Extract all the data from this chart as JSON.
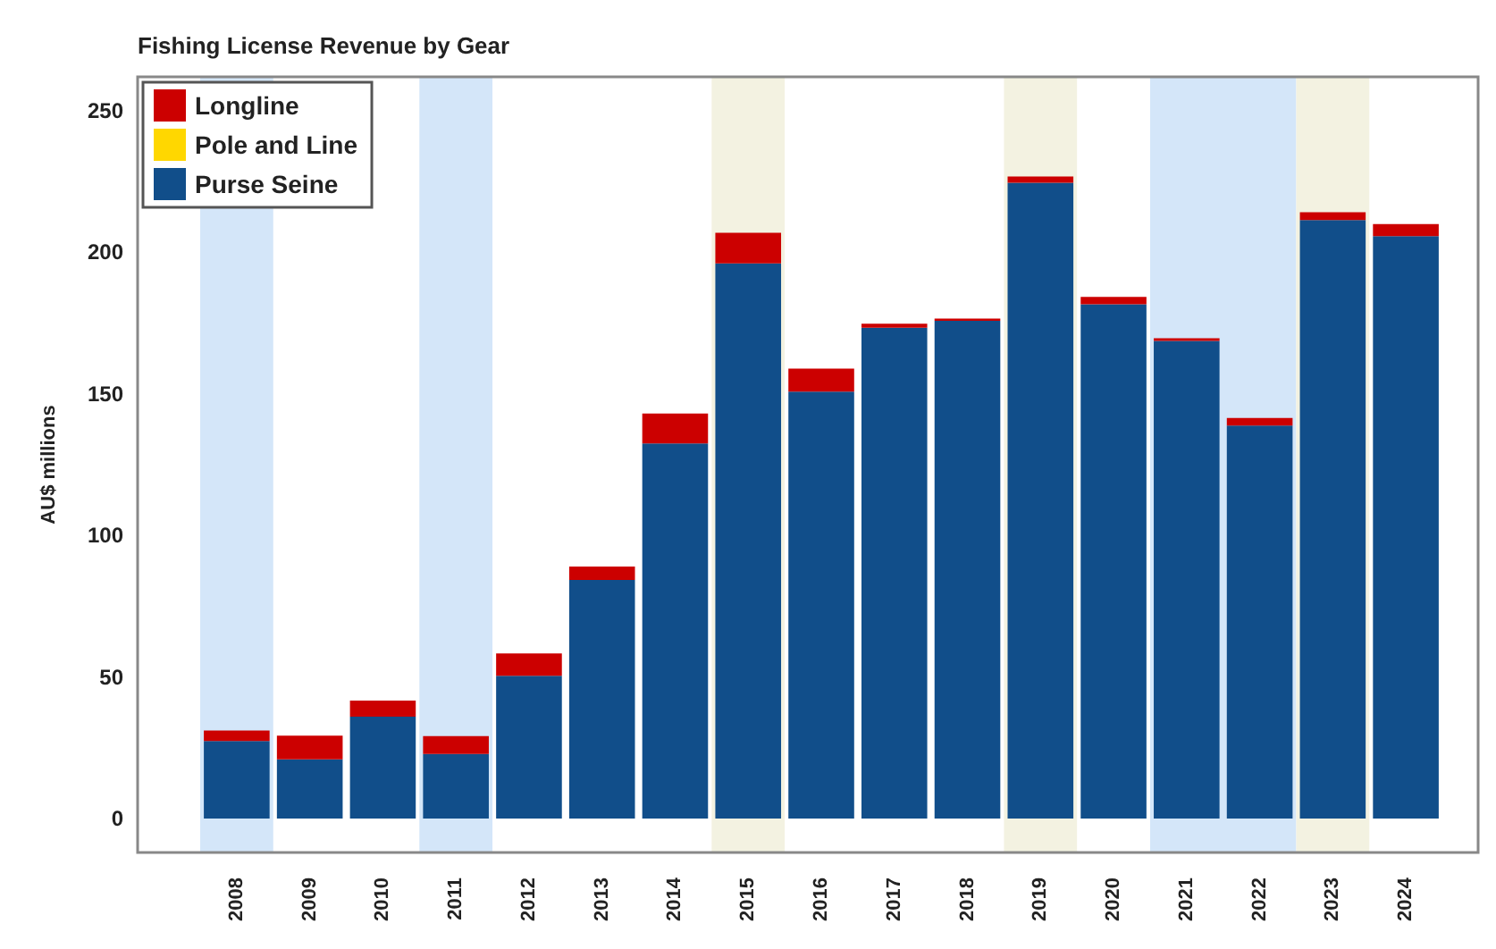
{
  "chart_data": {
    "type": "bar",
    "title": "Fishing License Revenue by Gear",
    "ylabel": "AU$ millions",
    "categories": [
      "2008",
      "2009",
      "2010",
      "2011",
      "2012",
      "2013",
      "2014",
      "2015",
      "2016",
      "2017",
      "2018",
      "2019",
      "2020",
      "2021",
      "2022",
      "2023",
      "2024"
    ],
    "stacked": true,
    "series": [
      {
        "name": "Purse Seine",
        "color": "#114e8a",
        "values": [
          27.4,
          20.9,
          36,
          22.8,
          50.4,
          84.3,
          132.5,
          196.1,
          150.8,
          173.4,
          175.8,
          224.6,
          181.7,
          168.7,
          138.8,
          211.4,
          205.7
        ]
      },
      {
        "name": "Pole and Line",
        "color": "#ffd700",
        "values": [
          0,
          0,
          0,
          0,
          0,
          0,
          0,
          0,
          0,
          0,
          0,
          0,
          0,
          0,
          0,
          0,
          0
        ]
      },
      {
        "name": "Longline",
        "color": "#cc0000",
        "values": [
          3.7,
          8.4,
          5.7,
          6.3,
          7.9,
          4.7,
          10.6,
          10.8,
          8.1,
          1.4,
          0.8,
          2.2,
          2.6,
          1.0,
          2.7,
          2.8,
          4.3
        ]
      }
    ],
    "ylim": [
      -12,
      262
    ],
    "yticks": [
      0,
      50,
      100,
      150,
      200,
      250
    ],
    "bands": [
      {
        "axis": "x",
        "from": "2008",
        "to": "2008",
        "color": "#d4e6f9"
      },
      {
        "axis": "x",
        "from": "2011",
        "to": "2011",
        "color": "#d4e6f9"
      },
      {
        "axis": "x",
        "from": "2015",
        "to": "2015",
        "color": "#f3f2e1"
      },
      {
        "axis": "x",
        "from": "2019",
        "to": "2019",
        "color": "#f3f2e1"
      },
      {
        "axis": "x",
        "from": "2021",
        "to": "2022",
        "color": "#d4e6f9"
      },
      {
        "axis": "x",
        "from": "2023",
        "to": "2023",
        "color": "#f3f2e1"
      }
    ],
    "grid": false,
    "legend": "top left"
  }
}
